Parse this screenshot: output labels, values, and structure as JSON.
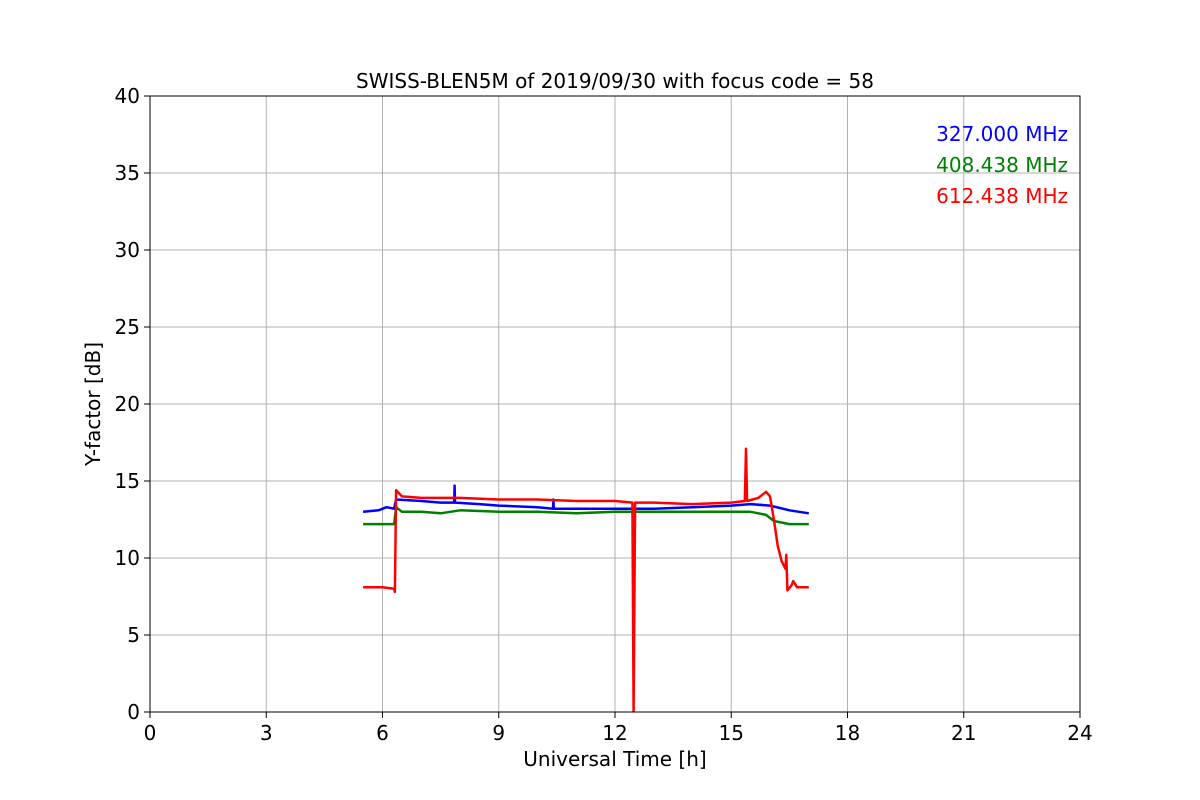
{
  "chart_data": {
    "type": "line",
    "title": "SWISS-BLEN5M of 2019/09/30 with focus code = 58",
    "xlabel": "Universal Time [h]",
    "ylabel": "Y-factor [dB]",
    "xlim": [
      0,
      24
    ],
    "ylim": [
      0,
      40
    ],
    "xticks": [
      0,
      3,
      6,
      9,
      12,
      15,
      18,
      21,
      24
    ],
    "yticks": [
      0,
      5,
      10,
      15,
      20,
      25,
      30,
      35,
      40
    ],
    "grid": true,
    "legend_position": "top-right",
    "series": [
      {
        "name": "327.000 MHz",
        "color": "#0000ff",
        "points": [
          [
            5.5,
            13.0
          ],
          [
            5.9,
            13.1
          ],
          [
            6.1,
            13.3
          ],
          [
            6.3,
            13.2
          ],
          [
            6.35,
            13.8
          ],
          [
            7.0,
            13.7
          ],
          [
            7.5,
            13.6
          ],
          [
            7.85,
            13.6
          ],
          [
            7.86,
            14.7
          ],
          [
            7.87,
            13.6
          ],
          [
            8.5,
            13.5
          ],
          [
            9.0,
            13.4
          ],
          [
            10.0,
            13.3
          ],
          [
            10.4,
            13.2
          ],
          [
            10.41,
            13.8
          ],
          [
            10.42,
            13.2
          ],
          [
            11.0,
            13.2
          ],
          [
            12.0,
            13.2
          ],
          [
            13.0,
            13.2
          ],
          [
            14.0,
            13.3
          ],
          [
            15.0,
            13.4
          ],
          [
            15.5,
            13.5
          ],
          [
            16.0,
            13.4
          ],
          [
            16.5,
            13.1
          ],
          [
            17.0,
            12.9
          ]
        ]
      },
      {
        "name": "408.438 MHz",
        "color": "#008000",
        "points": [
          [
            5.5,
            12.2
          ],
          [
            6.0,
            12.2
          ],
          [
            6.3,
            12.2
          ],
          [
            6.35,
            13.3
          ],
          [
            6.5,
            13.0
          ],
          [
            7.0,
            13.0
          ],
          [
            7.5,
            12.9
          ],
          [
            8.0,
            13.1
          ],
          [
            9.0,
            13.0
          ],
          [
            10.0,
            13.0
          ],
          [
            11.0,
            12.9
          ],
          [
            12.0,
            13.0
          ],
          [
            13.0,
            13.0
          ],
          [
            14.0,
            13.0
          ],
          [
            15.0,
            13.0
          ],
          [
            15.5,
            13.0
          ],
          [
            15.9,
            12.8
          ],
          [
            16.1,
            12.4
          ],
          [
            16.5,
            12.2
          ],
          [
            17.0,
            12.2
          ]
        ]
      },
      {
        "name": "612.438 MHz",
        "color": "#ff0000",
        "points": [
          [
            5.5,
            8.1
          ],
          [
            6.0,
            8.1
          ],
          [
            6.3,
            8.0
          ],
          [
            6.32,
            7.8
          ],
          [
            6.35,
            14.4
          ],
          [
            6.5,
            14.0
          ],
          [
            7.0,
            13.9
          ],
          [
            7.5,
            13.9
          ],
          [
            8.0,
            13.9
          ],
          [
            9.0,
            13.8
          ],
          [
            10.0,
            13.8
          ],
          [
            11.0,
            13.7
          ],
          [
            12.0,
            13.7
          ],
          [
            12.45,
            13.6
          ],
          [
            12.48,
            0.0
          ],
          [
            12.52,
            13.6
          ],
          [
            13.0,
            13.6
          ],
          [
            14.0,
            13.5
          ],
          [
            15.0,
            13.6
          ],
          [
            15.35,
            13.7
          ],
          [
            15.38,
            17.1
          ],
          [
            15.41,
            13.7
          ],
          [
            15.7,
            13.9
          ],
          [
            15.9,
            14.3
          ],
          [
            16.0,
            14.0
          ],
          [
            16.1,
            12.5
          ],
          [
            16.2,
            10.8
          ],
          [
            16.3,
            9.8
          ],
          [
            16.4,
            9.3
          ],
          [
            16.42,
            10.2
          ],
          [
            16.45,
            7.9
          ],
          [
            16.55,
            8.2
          ],
          [
            16.6,
            8.5
          ],
          [
            16.7,
            8.1
          ],
          [
            17.0,
            8.1
          ]
        ]
      }
    ]
  }
}
